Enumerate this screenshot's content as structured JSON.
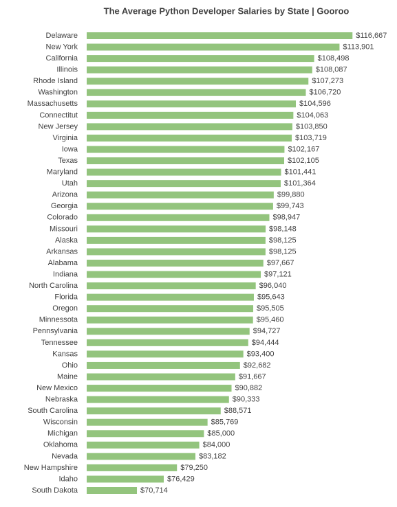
{
  "chart_data": {
    "type": "barh",
    "title": "The Average Python Developer Salaries by State | Gooroo",
    "categories": [
      "Delaware",
      "New York",
      "California",
      "Illinois",
      "Rhode Island",
      "Washington",
      "Massachusetts",
      "Connectitut",
      "New Jersey",
      "Virginia",
      "Iowa",
      "Texas",
      "Maryland",
      "Utah",
      "Arizona",
      "Georgia",
      "Colorado",
      "Missouri",
      "Alaska",
      "Arkansas",
      "Alabama",
      "Indiana",
      "North Carolina",
      "Florida",
      "Oregon",
      "Minnessota",
      "Pennsylvania",
      "Tennessee",
      "Kansas",
      "Ohio",
      "Maine",
      "New Mexico",
      "Nebraska",
      "South Carolina",
      "Wisconsin",
      "Michigan",
      "Oklahoma",
      "Nevada",
      "New Hampshire",
      "Idaho",
      "South Dakota"
    ],
    "values": [
      116667,
      113901,
      108498,
      108087,
      107273,
      106720,
      104596,
      104063,
      103850,
      103719,
      102167,
      102105,
      101441,
      101364,
      99880,
      99743,
      98947,
      98148,
      98125,
      98125,
      97667,
      97121,
      96040,
      95643,
      95505,
      95460,
      94727,
      94444,
      93400,
      92682,
      91667,
      90882,
      90333,
      88571,
      85769,
      85000,
      84000,
      83182,
      79250,
      76429,
      70714
    ],
    "value_labels": [
      "$116,667",
      "$113,901",
      "$108,498",
      "$108,087",
      "$107,273",
      "$106,720",
      "$104,596",
      "$104,063",
      "$103,850",
      "$103,719",
      "$102,167",
      "$102,105",
      "$101,441",
      "$101,364",
      "$99,880",
      "$99,743",
      "$98,947",
      "$98,148",
      "$98,125",
      "$98,125",
      "$97,667",
      "$97,121",
      "$96,040",
      "$95,643",
      "$95,505",
      "$95,460",
      "$94,727",
      "$94,444",
      "$93,400",
      "$92,682",
      "$91,667",
      "$90,882",
      "$90,333",
      "$88,571",
      "$85,769",
      "$85,000",
      "$84,000",
      "$83,182",
      "$79,250",
      "$76,429",
      "$70,714"
    ],
    "color": "#93c47d",
    "xlim": [
      60000,
      120000
    ]
  }
}
